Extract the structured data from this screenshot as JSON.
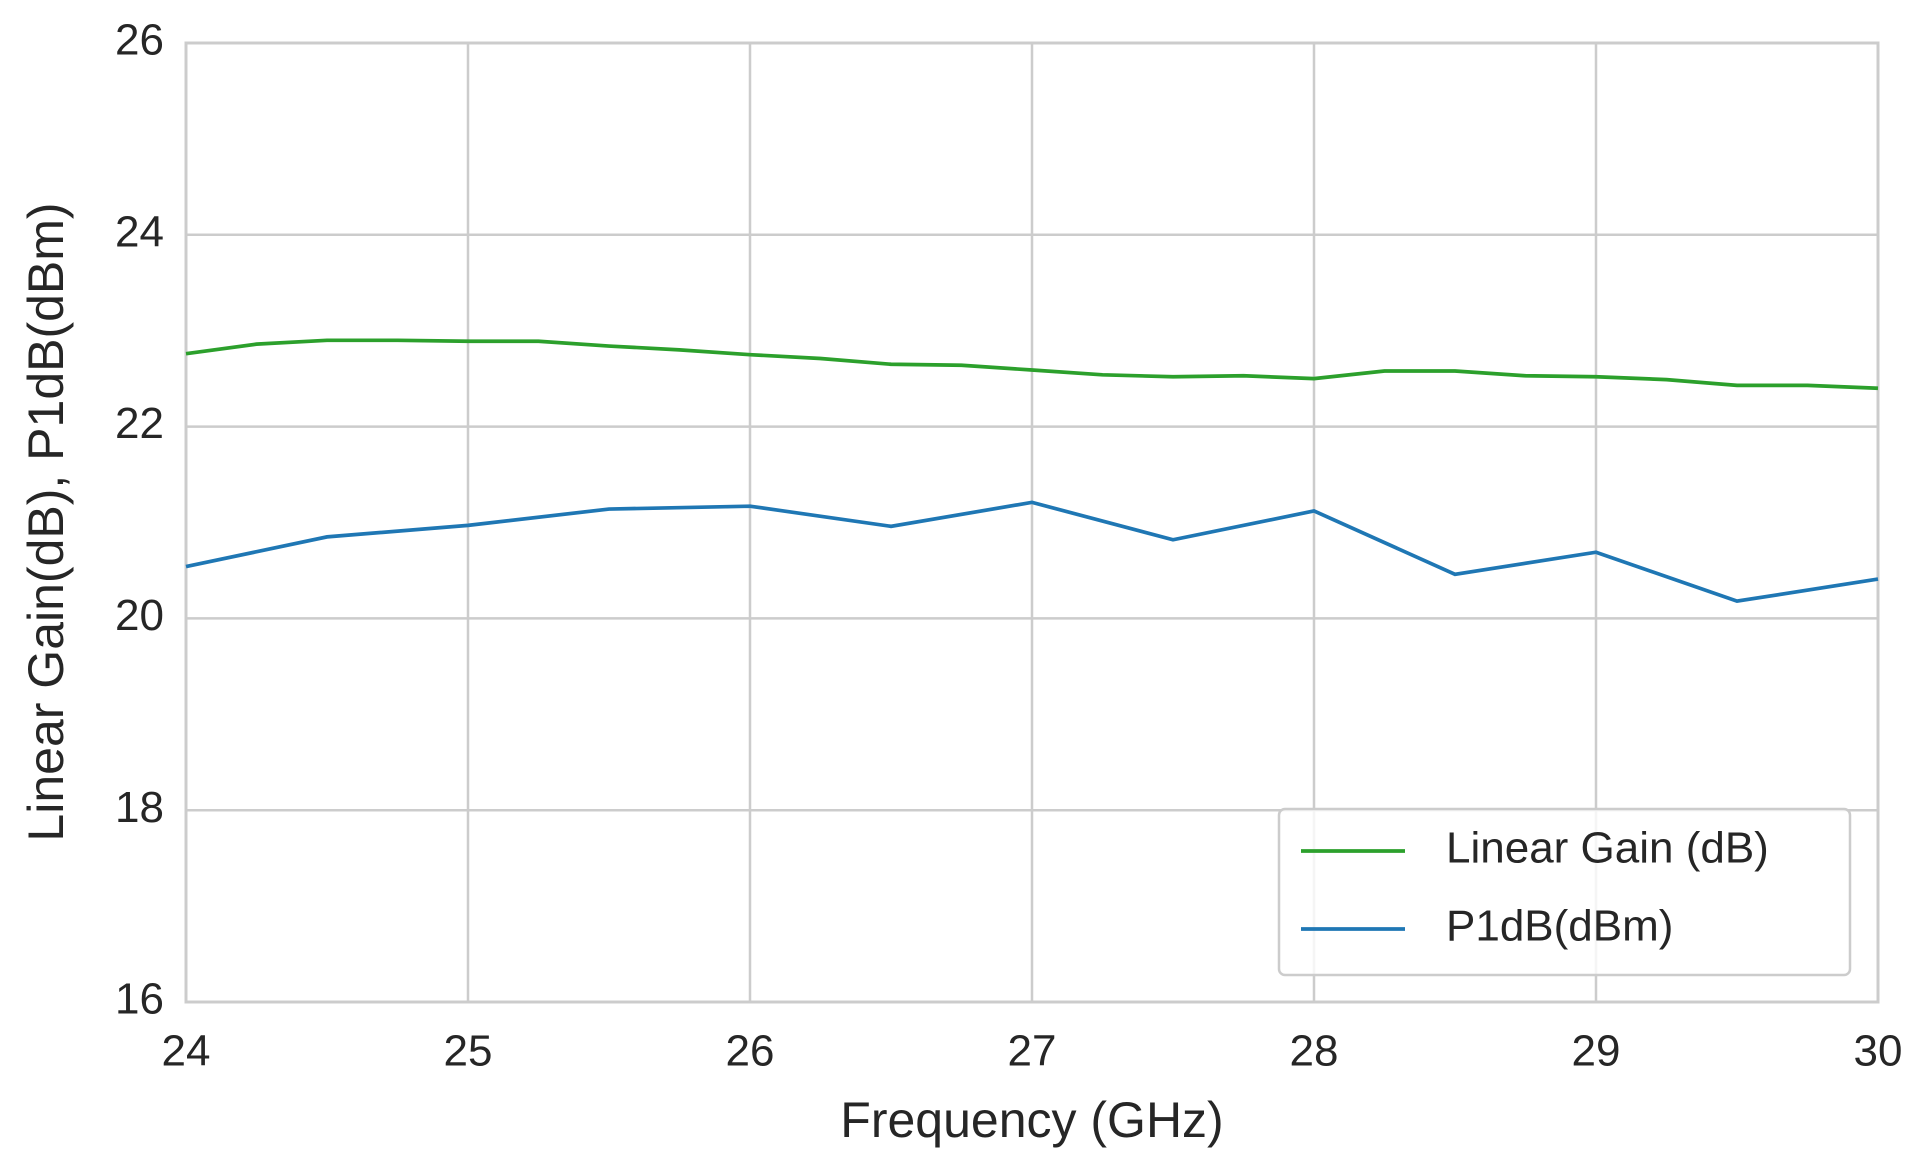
{
  "chart_data": {
    "type": "line",
    "xlabel": "Frequency (GHz)",
    "ylabel": "Linear Gain(dB), P1dB(dBm)",
    "series": [
      {
        "name": "Linear Gain (dB)",
        "color": "#2ca02c",
        "x": [
          24,
          24.25,
          24.5,
          24.75,
          25,
          25.25,
          25.5,
          25.75,
          26,
          26.25,
          26.5,
          26.75,
          27,
          27.25,
          27.5,
          27.75,
          28,
          28.25,
          28.5,
          28.75,
          29,
          29.25,
          29.5,
          29.75,
          30
        ],
        "values": [
          22.76,
          22.86,
          22.9,
          22.9,
          22.89,
          22.89,
          22.84,
          22.8,
          22.75,
          22.71,
          22.65,
          22.64,
          22.59,
          22.54,
          22.52,
          22.53,
          22.5,
          22.58,
          22.58,
          22.53,
          22.52,
          22.49,
          22.43,
          22.43,
          22.4
        ]
      },
      {
        "name": "P1dB(dBm)",
        "color": "#1f77b4",
        "x": [
          24,
          24.5,
          25,
          25.5,
          26,
          26.5,
          27,
          27.5,
          28,
          28.5,
          29,
          29.5,
          30
        ],
        "values": [
          20.54,
          20.85,
          20.97,
          21.14,
          21.17,
          20.96,
          21.21,
          20.82,
          21.12,
          20.46,
          20.69,
          20.18,
          20.41
        ]
      }
    ],
    "xlim": [
      24,
      30
    ],
    "xticks": [
      24,
      25,
      26,
      27,
      28,
      29,
      30
    ],
    "ylim": [
      16,
      26
    ],
    "yticks": [
      16,
      18,
      20,
      22,
      24,
      26
    ],
    "grid": true,
    "legend": "lower right"
  }
}
